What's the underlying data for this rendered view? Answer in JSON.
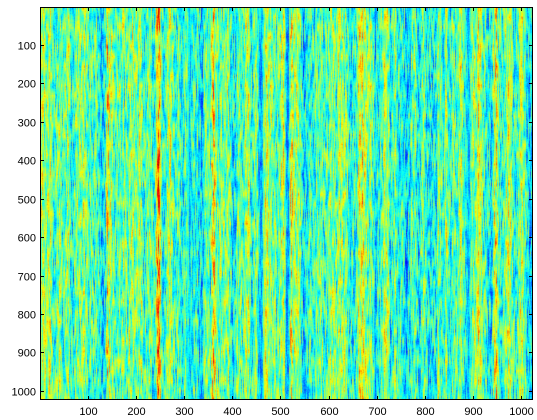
{
  "chart_data": {
    "type": "heatmap",
    "colormap": "jet",
    "x_range": [
      1,
      1024
    ],
    "y_range": [
      1,
      1024
    ],
    "y_direction": "top-to-bottom",
    "xticks": [
      100,
      200,
      300,
      400,
      500,
      600,
      700,
      800,
      900,
      1000
    ],
    "xtick_labels": [
      "100",
      "200",
      "300",
      "400",
      "500",
      "600",
      "700",
      "800",
      "900",
      "1000"
    ],
    "yticks": [
      100,
      200,
      300,
      400,
      500,
      600,
      700,
      800,
      900,
      1000
    ],
    "ytick_labels": [
      "100",
      "200",
      "300",
      "400",
      "500",
      "600",
      "700",
      "800",
      "900",
      "1000"
    ],
    "pattern": "vertically elongated streaks",
    "dominant_colors": [
      "#00b4ff",
      "#70ffa0",
      "#ffff00"
    ],
    "low_streak_color": "#0018c8",
    "high_streak_color": "#d01000",
    "low_streaks_x": [
      310,
      460,
      515,
      700,
      890
    ],
    "high_streaks_x": [
      140,
      245,
      360,
      520,
      700,
      945
    ],
    "grid": false,
    "title": "",
    "xlabel": "",
    "ylabel": ""
  }
}
